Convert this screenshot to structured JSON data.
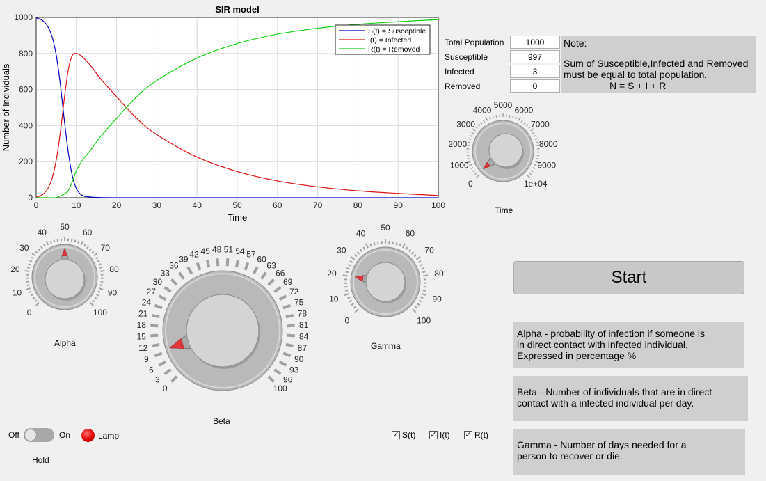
{
  "chart_data": {
    "type": "line",
    "title": "SIR model",
    "xlabel": "Time",
    "ylabel": "Number of Individuals",
    "xlim": [
      0,
      100
    ],
    "ylim": [
      0,
      1000
    ],
    "xticks": [
      0,
      10,
      20,
      30,
      40,
      50,
      60,
      70,
      80,
      90,
      100
    ],
    "yticks": [
      0,
      200,
      400,
      600,
      800,
      1000
    ],
    "grid": true,
    "legend_position": "top-right",
    "series": [
      {
        "name": "S(t) = Susceptible",
        "color": "#0000c8",
        "x": [
          0,
          1,
          2,
          3,
          4,
          5,
          6,
          7,
          8,
          9,
          10,
          11,
          12,
          14,
          16,
          20,
          30,
          40,
          60,
          80,
          100
        ],
        "y": [
          997,
          990,
          975,
          945,
          890,
          790,
          630,
          430,
          250,
          120,
          50,
          20,
          8,
          3,
          1,
          0,
          0,
          0,
          0,
          0,
          0
        ]
      },
      {
        "name": "I(t) = Infected",
        "color": "#e01010",
        "x": [
          0,
          1,
          2,
          3,
          4,
          5,
          6,
          7,
          8,
          9,
          10,
          11,
          12,
          14,
          16,
          20,
          25,
          30,
          40,
          50,
          60,
          70,
          80,
          90,
          100
        ],
        "y": [
          3,
          10,
          25,
          55,
          110,
          210,
          360,
          550,
          710,
          790,
          800,
          790,
          770,
          720,
          660,
          560,
          440,
          350,
          225,
          145,
          93,
          60,
          38,
          24,
          12
        ]
      },
      {
        "name": "R(t) = Removed",
        "color": "#10d010",
        "x": [
          0,
          1,
          2,
          3,
          4,
          5,
          6,
          7,
          8,
          9,
          10,
          11,
          12,
          14,
          16,
          20,
          25,
          30,
          40,
          50,
          60,
          70,
          80,
          90,
          100
        ],
        "y": [
          0,
          0,
          0,
          0,
          0,
          0,
          10,
          20,
          40,
          90,
          150,
          190,
          222,
          277,
          339,
          440,
          560,
          650,
          775,
          855,
          907,
          940,
          962,
          976,
          988
        ]
      }
    ]
  },
  "fields": {
    "total_label": "Total Population",
    "total_value": "1000",
    "s_label": "Susceptible",
    "s_value": "997",
    "i_label": "Infected",
    "i_value": "3",
    "r_label": "Removed",
    "r_value": "0"
  },
  "note": {
    "title": "Note:",
    "line1": "Sum of Susceptible,Infected and Removed",
    "line2": "must be equal to total population.",
    "formula": "N = S + I + R"
  },
  "start_label": "Start",
  "info": {
    "alpha": [
      "Alpha - probability of infection if someone is",
      "in direct contact with infected individual,",
      "Expressed in percentage %"
    ],
    "beta": [
      "Beta - Number of individuals that are in direct",
      "contact with a infected individual per day."
    ],
    "gamma": [
      "Gamma - Number of days needed for a",
      "person to recover or die."
    ]
  },
  "knobs": {
    "time": {
      "label": "Time",
      "min": 0,
      "max": 10000,
      "value": 100,
      "ticks": [
        "0",
        "1000",
        "2000",
        "3000",
        "4000",
        "5000",
        "6000",
        "7000",
        "8000",
        "9000",
        "1e+04"
      ]
    },
    "alpha": {
      "label": "Alpha",
      "min": 0,
      "max": 100,
      "value": 50,
      "ticks": [
        "0",
        "10",
        "20",
        "30",
        "40",
        "50",
        "60",
        "70",
        "80",
        "90",
        "100"
      ]
    },
    "beta": {
      "label": "Beta",
      "min": 0,
      "max": 100,
      "value": 10,
      "ticks": [
        "0",
        "3",
        "6",
        "9",
        "12",
        "15",
        "18",
        "21",
        "24",
        "27",
        "30",
        "33",
        "36",
        "39",
        "42",
        "45",
        "48",
        "51",
        "54",
        "57",
        "60",
        "63",
        "66",
        "69",
        "72",
        "75",
        "78",
        "81",
        "84",
        "87",
        "90",
        "93",
        "96",
        "100"
      ]
    },
    "gamma": {
      "label": "Gamma",
      "min": 0,
      "max": 100,
      "value": 20,
      "ticks": [
        "0",
        "10",
        "20",
        "30",
        "40",
        "50",
        "60",
        "70",
        "80",
        "90",
        "100"
      ]
    }
  },
  "switch": {
    "off_label": "Off",
    "on_label": "On",
    "caption": "Hold",
    "state": "off"
  },
  "lamp": {
    "label": "Lamp",
    "color": "#e00000"
  },
  "checkboxes": [
    {
      "label": "S(t)",
      "checked": true,
      "mark": "✓"
    },
    {
      "label": "I(t)",
      "checked": true,
      "mark": "✓"
    },
    {
      "label": "R(t)",
      "checked": true,
      "mark": "✓"
    }
  ]
}
